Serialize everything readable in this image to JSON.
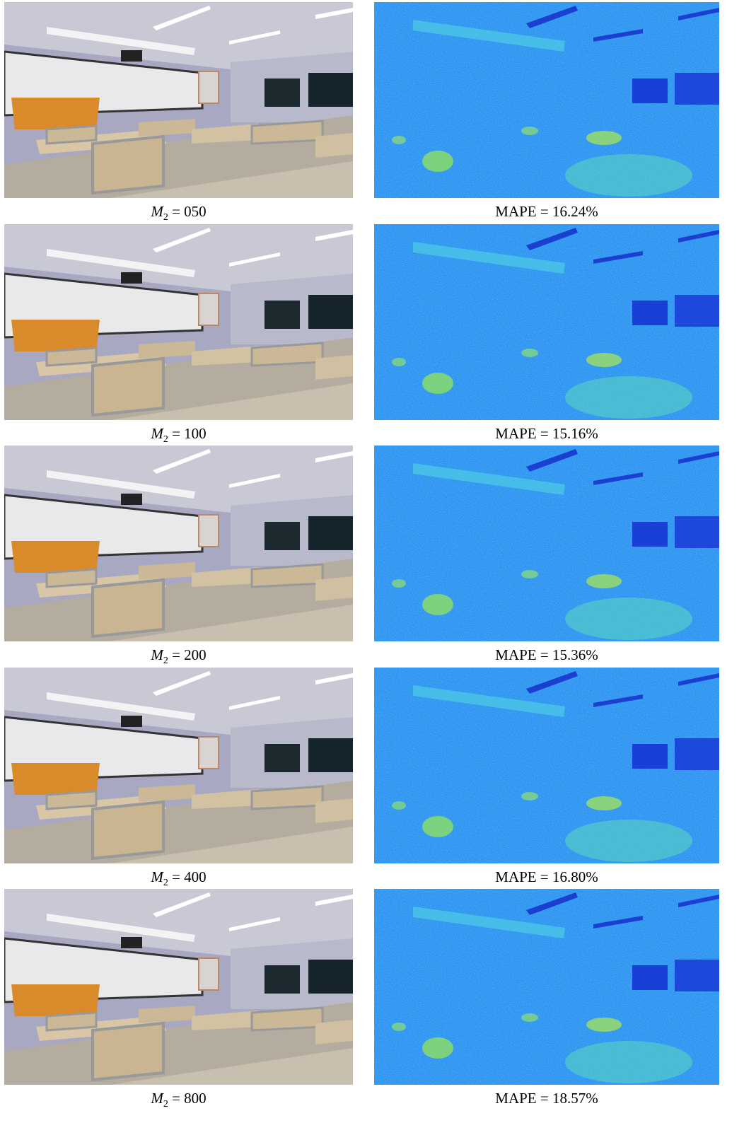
{
  "rows": [
    {
      "left_caption": {
        "symbol": "M",
        "subscript": "2",
        "text": "= 050"
      },
      "right_caption": "MAPE = 16.24%"
    },
    {
      "left_caption": {
        "symbol": "M",
        "subscript": "2",
        "text": "= 100"
      },
      "right_caption": "MAPE = 15.16%"
    },
    {
      "left_caption": {
        "symbol": "M",
        "subscript": "2",
        "text": "= 200"
      },
      "right_caption": "MAPE = 15.36%"
    },
    {
      "left_caption": {
        "symbol": "M",
        "subscript": "2",
        "text": "= 400"
      },
      "right_caption": "MAPE = 16.80%"
    },
    {
      "left_caption": {
        "symbol": "M",
        "subscript": "2",
        "text": "= 800"
      },
      "right_caption": "MAPE = 18.57%"
    }
  ]
}
